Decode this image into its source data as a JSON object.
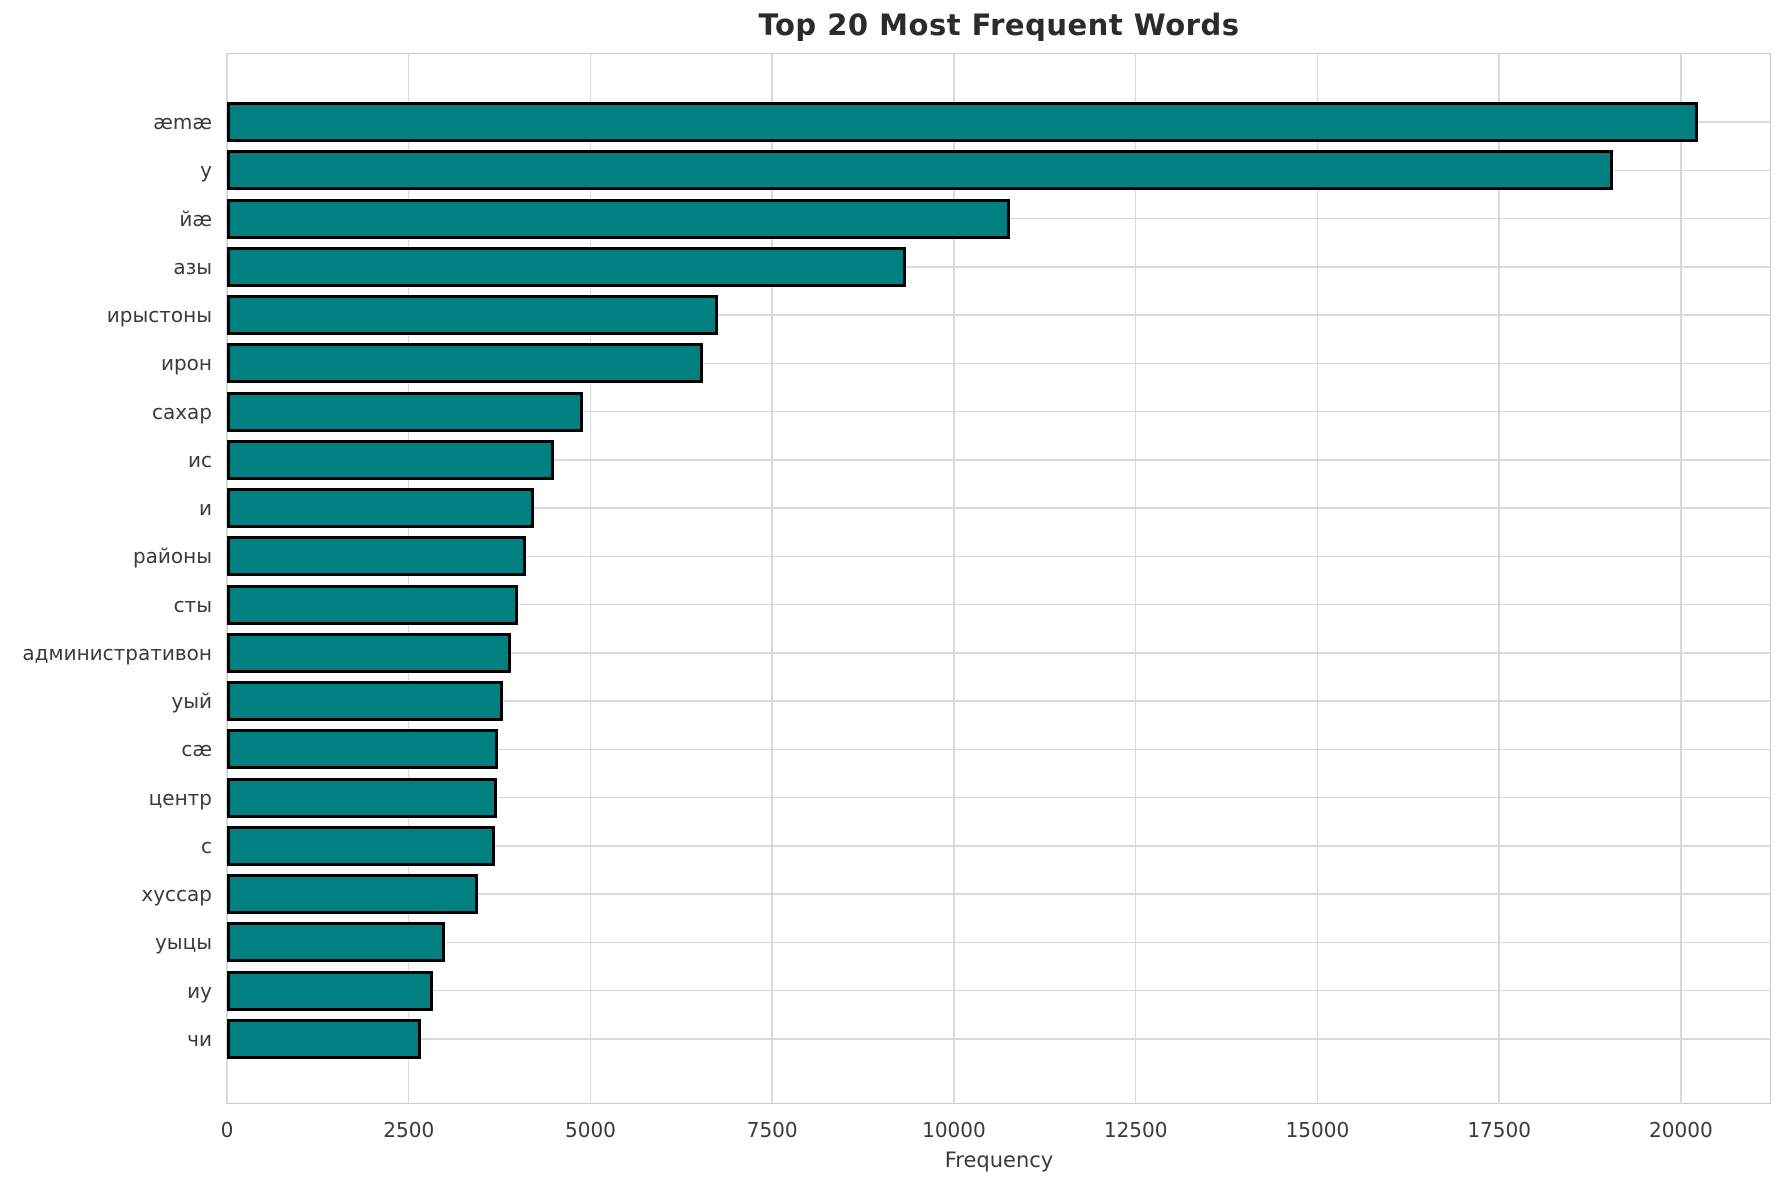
{
  "chart_data": {
    "type": "bar",
    "orientation": "horizontal",
    "title": "Top 20 Most Frequent Words",
    "xlabel": "Frequency",
    "ylabel": "",
    "categories": [
      "æmæ",
      "у",
      "йæ",
      "азы",
      "ирыстоны",
      "ирон",
      "сахар",
      "ис",
      "и",
      "районы",
      "сты",
      "административон",
      "уый",
      "сæ",
      "центр",
      "с",
      "хуссар",
      "уыцы",
      "иу",
      "чи"
    ],
    "values": [
      20230,
      19070,
      10775,
      9340,
      6760,
      6550,
      4900,
      4505,
      4220,
      4120,
      4000,
      3910,
      3790,
      3725,
      3720,
      3690,
      3450,
      3000,
      2835,
      2670
    ],
    "xticks": [
      0,
      2500,
      5000,
      7500,
      10000,
      12500,
      15000,
      17500,
      20000
    ],
    "xlim": [
      0,
      21240
    ],
    "grid": true,
    "legend_position": "none",
    "bar_color": "#008080",
    "bar_edge_color": "#000000",
    "grid_color": "#d9d9d9",
    "spine_color": "#c9c9c9",
    "tick_text_color": "#3b3b3b",
    "title_color": "#2b2b2b",
    "background_color": "#ffffff"
  }
}
